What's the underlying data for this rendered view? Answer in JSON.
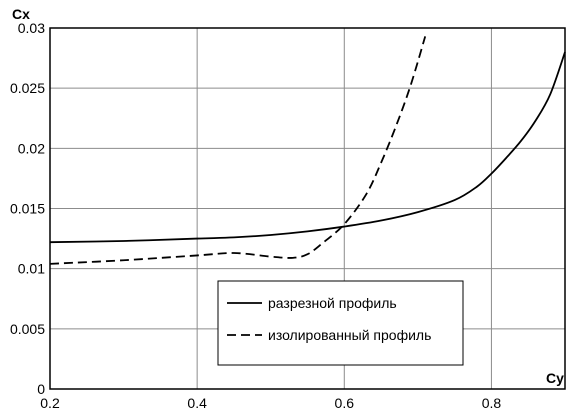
{
  "chart_data": {
    "type": "line",
    "xlabel": "Cy",
    "ylabel": "Cx",
    "xlim": [
      0.2,
      0.9
    ],
    "ylim": [
      0,
      0.03
    ],
    "x_ticks": [
      "0.2",
      "0.4",
      "0.6",
      "0.8"
    ],
    "x_tick_values": [
      0.2,
      0.4,
      0.6,
      0.8
    ],
    "y_ticks": [
      "0",
      "0.005",
      "0.01",
      "0.015",
      "0.02",
      "0.025",
      "0.03"
    ],
    "y_tick_values": [
      0,
      0.005,
      0.01,
      0.015,
      0.02,
      0.025,
      0.03
    ],
    "grid": true,
    "legend_placement": "bottom-right",
    "series": [
      {
        "name": "разрезной  профиль",
        "style": "solid",
        "color": "#000000",
        "x": [
          0.2,
          0.3,
          0.4,
          0.45,
          0.5,
          0.55,
          0.6,
          0.65,
          0.7,
          0.75,
          0.78,
          0.8,
          0.82,
          0.84,
          0.86,
          0.88,
          0.9
        ],
        "y": [
          0.0122,
          0.0123,
          0.0125,
          0.0126,
          0.0128,
          0.0131,
          0.0135,
          0.014,
          0.0147,
          0.0157,
          0.0168,
          0.0179,
          0.0192,
          0.0206,
          0.0223,
          0.0245,
          0.028
        ]
      },
      {
        "name": "изолированный  профиль",
        "style": "dashed",
        "color": "#000000",
        "x": [
          0.2,
          0.3,
          0.4,
          0.45,
          0.5,
          0.53,
          0.55,
          0.57,
          0.6,
          0.63,
          0.65,
          0.67,
          0.69,
          0.71
        ],
        "y": [
          0.0104,
          0.0107,
          0.0111,
          0.0113,
          0.011,
          0.0109,
          0.0112,
          0.0121,
          0.0137,
          0.0162,
          0.0188,
          0.0218,
          0.0252,
          0.0293
        ]
      }
    ]
  }
}
